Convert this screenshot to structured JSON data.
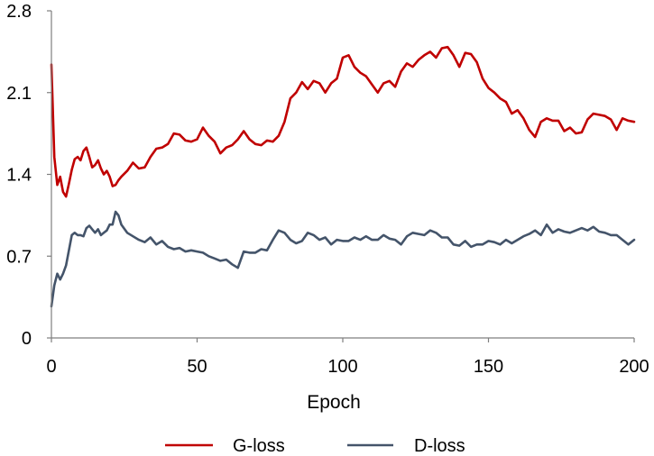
{
  "chart_data": {
    "type": "line",
    "title": "",
    "xlabel": "Epoch",
    "ylabel": "",
    "xlim": [
      0,
      200
    ],
    "ylim": [
      0,
      2.8
    ],
    "xticks": [
      "0",
      "50",
      "100",
      "150",
      "200"
    ],
    "yticks": [
      "0",
      "0.7",
      "1.4",
      "2.1",
      "2.8"
    ],
    "grid": false,
    "legend_position": "bottom-center",
    "series": [
      {
        "name": "G-loss",
        "color": "#c00000",
        "x": [
          0,
          1,
          2,
          3,
          4,
          5,
          6,
          7,
          8,
          9,
          10,
          11,
          12,
          13,
          14,
          15,
          16,
          17,
          18,
          19,
          20,
          21,
          22,
          23,
          24,
          26,
          28,
          30,
          32,
          34,
          36,
          38,
          40,
          42,
          44,
          46,
          48,
          50,
          52,
          54,
          56,
          58,
          60,
          62,
          64,
          66,
          68,
          70,
          72,
          74,
          76,
          78,
          80,
          82,
          84,
          86,
          88,
          90,
          92,
          94,
          96,
          98,
          100,
          102,
          104,
          106,
          108,
          110,
          112,
          114,
          116,
          118,
          120,
          122,
          124,
          126,
          128,
          130,
          132,
          134,
          136,
          138,
          140,
          142,
          144,
          146,
          148,
          150,
          152,
          154,
          156,
          158,
          160,
          162,
          164,
          166,
          168,
          170,
          172,
          174,
          176,
          178,
          180,
          182,
          184,
          186,
          188,
          190,
          192,
          194,
          196,
          198,
          200
        ],
        "values": [
          2.34,
          1.55,
          1.31,
          1.38,
          1.25,
          1.21,
          1.32,
          1.44,
          1.53,
          1.55,
          1.52,
          1.6,
          1.63,
          1.55,
          1.46,
          1.48,
          1.52,
          1.45,
          1.4,
          1.43,
          1.38,
          1.3,
          1.31,
          1.35,
          1.38,
          1.43,
          1.5,
          1.45,
          1.46,
          1.55,
          1.62,
          1.63,
          1.66,
          1.75,
          1.74,
          1.69,
          1.68,
          1.7,
          1.8,
          1.73,
          1.68,
          1.58,
          1.63,
          1.65,
          1.7,
          1.77,
          1.7,
          1.66,
          1.65,
          1.69,
          1.68,
          1.73,
          1.85,
          2.05,
          2.1,
          2.19,
          2.13,
          2.2,
          2.18,
          2.1,
          2.18,
          2.22,
          2.4,
          2.42,
          2.32,
          2.27,
          2.24,
          2.17,
          2.1,
          2.18,
          2.2,
          2.15,
          2.28,
          2.35,
          2.32,
          2.38,
          2.42,
          2.45,
          2.4,
          2.48,
          2.49,
          2.42,
          2.32,
          2.44,
          2.43,
          2.36,
          2.22,
          2.14,
          2.1,
          2.05,
          2.02,
          1.92,
          1.95,
          1.88,
          1.78,
          1.72,
          1.85,
          1.88,
          1.86,
          1.86,
          1.77,
          1.8,
          1.75,
          1.76,
          1.87,
          1.92,
          1.91,
          1.9,
          1.87,
          1.78,
          1.88,
          1.86,
          1.85
        ]
      },
      {
        "name": "D-loss",
        "color": "#44546a",
        "x": [
          0,
          1,
          2,
          3,
          4,
          5,
          6,
          7,
          8,
          9,
          10,
          11,
          12,
          13,
          14,
          15,
          16,
          17,
          18,
          19,
          20,
          21,
          22,
          23,
          24,
          26,
          28,
          30,
          32,
          34,
          36,
          38,
          40,
          42,
          44,
          46,
          48,
          50,
          52,
          54,
          56,
          58,
          60,
          62,
          64,
          66,
          68,
          70,
          72,
          74,
          76,
          78,
          80,
          82,
          84,
          86,
          88,
          90,
          92,
          94,
          96,
          98,
          100,
          102,
          104,
          106,
          108,
          110,
          112,
          114,
          116,
          118,
          120,
          122,
          124,
          126,
          128,
          130,
          132,
          134,
          136,
          138,
          140,
          142,
          144,
          146,
          148,
          150,
          152,
          154,
          156,
          158,
          160,
          162,
          164,
          166,
          168,
          170,
          172,
          174,
          176,
          178,
          180,
          182,
          184,
          186,
          188,
          190,
          192,
          194,
          196,
          198,
          200
        ],
        "values": [
          0.27,
          0.45,
          0.55,
          0.5,
          0.55,
          0.62,
          0.75,
          0.88,
          0.9,
          0.88,
          0.88,
          0.87,
          0.94,
          0.96,
          0.93,
          0.9,
          0.93,
          0.88,
          0.9,
          0.92,
          0.97,
          0.97,
          1.08,
          1.05,
          0.97,
          0.9,
          0.87,
          0.84,
          0.82,
          0.86,
          0.8,
          0.83,
          0.78,
          0.76,
          0.77,
          0.74,
          0.75,
          0.74,
          0.73,
          0.7,
          0.68,
          0.66,
          0.67,
          0.63,
          0.6,
          0.74,
          0.73,
          0.73,
          0.76,
          0.75,
          0.84,
          0.92,
          0.9,
          0.84,
          0.81,
          0.83,
          0.9,
          0.88,
          0.84,
          0.86,
          0.8,
          0.84,
          0.83,
          0.83,
          0.86,
          0.84,
          0.87,
          0.84,
          0.84,
          0.88,
          0.85,
          0.84,
          0.8,
          0.87,
          0.9,
          0.89,
          0.88,
          0.92,
          0.9,
          0.86,
          0.86,
          0.8,
          0.79,
          0.83,
          0.78,
          0.8,
          0.8,
          0.83,
          0.82,
          0.8,
          0.84,
          0.81,
          0.84,
          0.87,
          0.89,
          0.92,
          0.88,
          0.97,
          0.9,
          0.93,
          0.91,
          0.9,
          0.92,
          0.94,
          0.92,
          0.95,
          0.91,
          0.9,
          0.88,
          0.88,
          0.84,
          0.8,
          0.84
        ]
      }
    ]
  }
}
